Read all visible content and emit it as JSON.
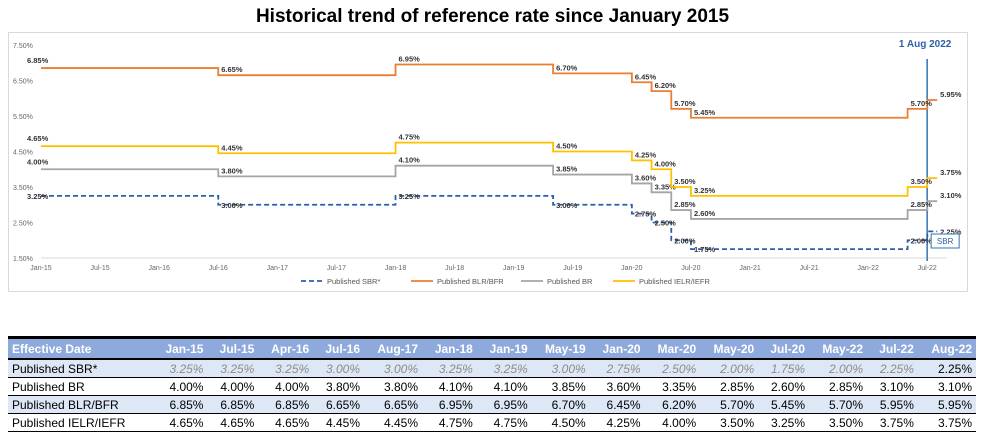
{
  "title": "Historical trend of reference rate since January 2015",
  "chart_data": {
    "type": "line",
    "title": "Historical trend of reference rate since January 2015",
    "y_ticks": [
      "7.50%",
      "6.50%",
      "5.50%",
      "4.50%",
      "3.50%",
      "2.50%",
      "1.50%"
    ],
    "x_ticks": [
      "Jan-15",
      "Jul-15",
      "Jan-16",
      "Jul-16",
      "Jan-17",
      "Jul-17",
      "Jan-18",
      "Jul-18",
      "Jan-19",
      "Jul-19",
      "Jan-20",
      "Jul-20",
      "Jan-21",
      "Jul-21",
      "Jan-22",
      "Jul-22"
    ],
    "ylim": [
      1.5,
      7.5
    ],
    "xlim": [
      "2015-01",
      "2022-09"
    ],
    "grid": false,
    "legend_position": "bottom",
    "series": [
      {
        "name": "Published SBR*",
        "color": "#2e5ea8",
        "style": "dashed",
        "points": [
          [
            "2015-01",
            3.25
          ],
          [
            "2016-07",
            3.0
          ],
          [
            "2018-01",
            3.25
          ],
          [
            "2019-05",
            3.0
          ],
          [
            "2020-01",
            2.75
          ],
          [
            "2020-03",
            2.5
          ],
          [
            "2020-05",
            2.0
          ],
          [
            "2020-07",
            1.75
          ],
          [
            "2022-05",
            2.0
          ],
          [
            "2022-07",
            2.25
          ],
          [
            "2022-08",
            2.25
          ]
        ],
        "labels": [
          [
            "2015-01",
            "3.25%"
          ],
          [
            "2016-07",
            "3.00%"
          ],
          [
            "2018-01",
            "3.25%"
          ],
          [
            "2019-05",
            "3.00%"
          ],
          [
            "2020-01",
            "2.75%"
          ],
          [
            "2020-03",
            "2.50%"
          ],
          [
            "2020-05",
            "2.00%"
          ],
          [
            "2020-07",
            "1.75%"
          ],
          [
            "2022-05",
            "2.00%"
          ],
          [
            "2022-08",
            "2.25%"
          ]
        ]
      },
      {
        "name": "Published BLR/BFR",
        "color": "#ed7d31",
        "style": "solid",
        "points": [
          [
            "2015-01",
            6.85
          ],
          [
            "2016-07",
            6.65
          ],
          [
            "2018-01",
            6.95
          ],
          [
            "2019-05",
            6.7
          ],
          [
            "2020-01",
            6.45
          ],
          [
            "2020-03",
            6.2
          ],
          [
            "2020-05",
            5.7
          ],
          [
            "2020-07",
            5.45
          ],
          [
            "2022-05",
            5.7
          ],
          [
            "2022-07",
            5.95
          ],
          [
            "2022-08",
            5.95
          ]
        ],
        "labels": [
          [
            "2015-01",
            "6.85%"
          ],
          [
            "2016-07",
            "6.65%"
          ],
          [
            "2018-01",
            "6.95%"
          ],
          [
            "2019-05",
            "6.70%"
          ],
          [
            "2020-01",
            "6.45%"
          ],
          [
            "2020-03",
            "6.20%"
          ],
          [
            "2020-05",
            "5.70%"
          ],
          [
            "2020-07",
            "5.45%"
          ],
          [
            "2022-05",
            "5.70%"
          ],
          [
            "2022-08",
            "5.95%"
          ]
        ]
      },
      {
        "name": "Published BR",
        "color": "#a5a5a5",
        "style": "solid",
        "points": [
          [
            "2015-01",
            4.0
          ],
          [
            "2016-07",
            3.8
          ],
          [
            "2018-01",
            4.1
          ],
          [
            "2019-05",
            3.85
          ],
          [
            "2020-01",
            3.6
          ],
          [
            "2020-03",
            3.35
          ],
          [
            "2020-05",
            2.85
          ],
          [
            "2020-07",
            2.6
          ],
          [
            "2022-05",
            2.85
          ],
          [
            "2022-07",
            3.1
          ],
          [
            "2022-08",
            3.1
          ]
        ],
        "labels": [
          [
            "2015-01",
            "4.00%"
          ],
          [
            "2016-07",
            "3.80%"
          ],
          [
            "2018-01",
            "4.10%"
          ],
          [
            "2019-05",
            "3.85%"
          ],
          [
            "2020-01",
            "3.60%"
          ],
          [
            "2020-03",
            "3.35%"
          ],
          [
            "2020-05",
            "2.85%"
          ],
          [
            "2020-07",
            "2.60%"
          ],
          [
            "2022-05",
            "2.85%"
          ],
          [
            "2022-08",
            "3.10%"
          ]
        ]
      },
      {
        "name": "Published IELR/IEFR",
        "color": "#ffc000",
        "style": "solid",
        "points": [
          [
            "2015-01",
            4.65
          ],
          [
            "2016-07",
            4.45
          ],
          [
            "2018-01",
            4.75
          ],
          [
            "2019-05",
            4.5
          ],
          [
            "2020-01",
            4.25
          ],
          [
            "2020-03",
            4.0
          ],
          [
            "2020-05",
            3.5
          ],
          [
            "2020-07",
            3.25
          ],
          [
            "2022-05",
            3.5
          ],
          [
            "2022-07",
            3.75
          ],
          [
            "2022-08",
            3.75
          ]
        ],
        "labels": [
          [
            "2015-01",
            "4.65%"
          ],
          [
            "2016-07",
            "4.45%"
          ],
          [
            "2018-01",
            "4.75%"
          ],
          [
            "2019-05",
            "4.50%"
          ],
          [
            "2020-01",
            "4.25%"
          ],
          [
            "2020-03",
            "4.00%"
          ],
          [
            "2020-05",
            "3.50%"
          ],
          [
            "2020-07",
            "3.25%"
          ],
          [
            "2022-05",
            "3.50%"
          ],
          [
            "2022-08",
            "3.75%"
          ]
        ]
      }
    ],
    "annotations": {
      "date_marker": {
        "x": "2022-08",
        "text": "1 Aug 2022"
      },
      "sbr_box": {
        "text": "SBR"
      }
    }
  },
  "table": {
    "headers": [
      "Effective Date",
      "Jan-15",
      "Jul-15",
      "Apr-16",
      "Jul-16",
      "Aug-17",
      "Jan-18",
      "Jan-19",
      "May-19",
      "Jan-20",
      "Mar-20",
      "May-20",
      "Jul-20",
      "May-22",
      "Jul-22",
      "Aug-22"
    ],
    "rows": [
      {
        "cells": [
          "Published SBR*",
          "3.25%",
          "3.25%",
          "3.25%",
          "3.00%",
          "3.00%",
          "3.25%",
          "3.25%",
          "3.00%",
          "2.75%",
          "2.50%",
          "2.00%",
          "1.75%",
          "2.00%",
          "2.25%",
          "2.25%"
        ]
      },
      {
        "cells": [
          "Published BR",
          "4.00%",
          "4.00%",
          "4.00%",
          "3.80%",
          "3.80%",
          "4.10%",
          "4.10%",
          "3.85%",
          "3.60%",
          "3.35%",
          "2.85%",
          "2.60%",
          "2.85%",
          "3.10%",
          "3.10%"
        ]
      },
      {
        "cells": [
          "Published BLR/BFR",
          "6.85%",
          "6.85%",
          "6.85%",
          "6.65%",
          "6.65%",
          "6.95%",
          "6.95%",
          "6.70%",
          "6.45%",
          "6.20%",
          "5.70%",
          "5.45%",
          "5.70%",
          "5.95%",
          "5.95%"
        ]
      },
      {
        "cells": [
          "Published IELR/IEFR",
          "4.65%",
          "4.65%",
          "4.65%",
          "4.45%",
          "4.45%",
          "4.75%",
          "4.75%",
          "4.50%",
          "4.25%",
          "4.00%",
          "3.50%",
          "3.25%",
          "3.50%",
          "3.75%",
          "3.75%"
        ]
      }
    ]
  }
}
